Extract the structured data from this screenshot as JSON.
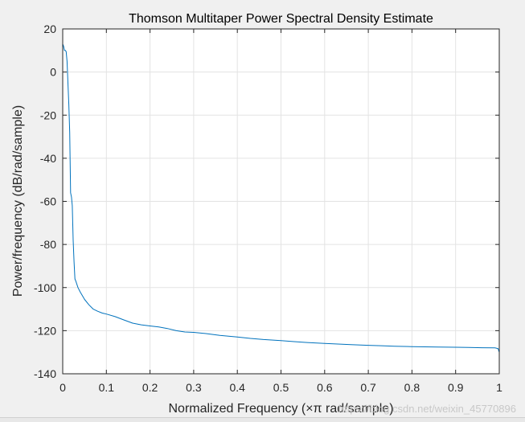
{
  "chart_data": {
    "type": "line",
    "title": "Thomson Multitaper Power Spectral Density Estimate",
    "xlabel": "Normalized Frequency  (×π rad/sample)",
    "ylabel": "Power/frequency (dB/rad/sample)",
    "xlim": [
      0,
      1
    ],
    "ylim": [
      -140,
      20
    ],
    "xticks": [
      "0",
      "0.1",
      "0.2",
      "0.3",
      "0.4",
      "0.5",
      "0.6",
      "0.7",
      "0.8",
      "0.9",
      "1"
    ],
    "yticks": [
      "20",
      "0",
      "-20",
      "-40",
      "-60",
      "-80",
      "-100",
      "-120",
      "-140"
    ],
    "grid": true,
    "series": [
      {
        "color": "#0072bd",
        "x": [
          0,
          0.002,
          0.004,
          0.006,
          0.008,
          0.01,
          0.012,
          0.014,
          0.016,
          0.018,
          0.02,
          0.022,
          0.024,
          0.026,
          0.028,
          0.03,
          0.035,
          0.04,
          0.05,
          0.06,
          0.07,
          0.08,
          0.09,
          0.1,
          0.12,
          0.14,
          0.16,
          0.18,
          0.2,
          0.22,
          0.24,
          0.26,
          0.28,
          0.3,
          0.33,
          0.36,
          0.4,
          0.43,
          0.46,
          0.5,
          0.53,
          0.56,
          0.6,
          0.63,
          0.66,
          0.7,
          0.73,
          0.76,
          0.8,
          0.83,
          0.86,
          0.9,
          0.93,
          0.96,
          0.99,
          0.997,
          1
        ],
        "y": [
          13,
          12,
          10,
          10,
          9.5,
          5,
          -5,
          -15,
          -28,
          -56,
          -58,
          -62,
          -78,
          -88,
          -96,
          -97,
          -100,
          -102,
          -105.5,
          -108,
          -110,
          -111,
          -111.8,
          -112.3,
          -113.5,
          -115,
          -116.5,
          -117.3,
          -117.8,
          -118.3,
          -119,
          -120,
          -120.6,
          -120.8,
          -121.4,
          -122.2,
          -122.9,
          -123.6,
          -124.1,
          -124.6,
          -125.1,
          -125.5,
          -125.9,
          -126.2,
          -126.5,
          -126.8,
          -127.0,
          -127.2,
          -127.4,
          -127.5,
          -127.6,
          -127.7,
          -127.8,
          -127.9,
          -128.0,
          -128.3,
          -130
        ]
      }
    ]
  },
  "watermark": "https://blog.csdn.net/weixin_45770896"
}
